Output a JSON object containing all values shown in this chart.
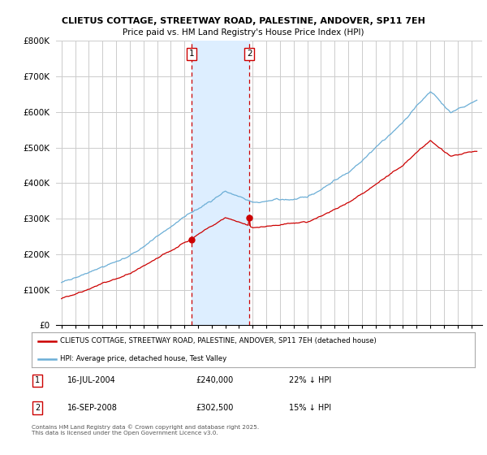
{
  "title1": "CLIETUS COTTAGE, STREETWAY ROAD, PALESTINE, ANDOVER, SP11 7EH",
  "title2": "Price paid vs. HM Land Registry's House Price Index (HPI)",
  "legend_label_red": "CLIETUS COTTAGE, STREETWAY ROAD, PALESTINE, ANDOVER, SP11 7EH (detached house)",
  "legend_label_blue": "HPI: Average price, detached house, Test Valley",
  "annotation1_date": "16-JUL-2004",
  "annotation1_price": "£240,000",
  "annotation1_hpi": "22% ↓ HPI",
  "annotation2_date": "16-SEP-2008",
  "annotation2_price": "£302,500",
  "annotation2_hpi": "15% ↓ HPI",
  "copyright": "Contains HM Land Registry data © Crown copyright and database right 2025.\nThis data is licensed under the Open Government Licence v3.0.",
  "shaded_x1": 2004.54,
  "shaded_x2": 2008.75,
  "sale1_x": 2004.54,
  "sale1_y": 240000,
  "sale2_x": 2008.75,
  "sale2_y": 302500,
  "ylim_min": 0,
  "ylim_max": 800000,
  "yticks": [
    0,
    100000,
    200000,
    300000,
    400000,
    500000,
    600000,
    700000,
    800000
  ],
  "ytick_labels": [
    "£0",
    "£100K",
    "£200K",
    "£300K",
    "£400K",
    "£500K",
    "£600K",
    "£700K",
    "£800K"
  ],
  "red_color": "#cc0000",
  "blue_color": "#6baed6",
  "shaded_color": "#ddeeff",
  "vline_color": "#cc0000",
  "background_color": "#ffffff",
  "grid_color": "#cccccc",
  "xlim_min": 1994.6,
  "xlim_max": 2025.8,
  "xstart": 1995,
  "xend": 2025
}
